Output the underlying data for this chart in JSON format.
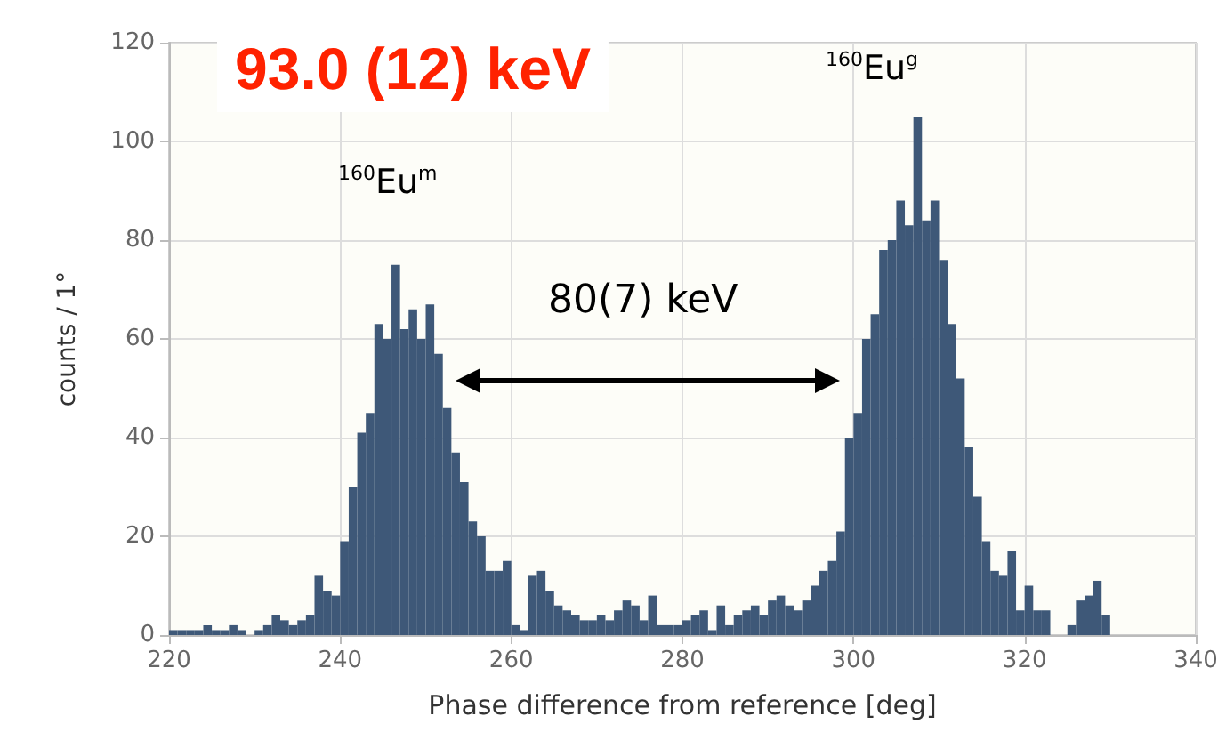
{
  "chart_data": {
    "type": "histogram",
    "title": "93.0 (12) keV",
    "xlabel": "Phase difference from reference [deg]",
    "ylabel": "counts / 1°",
    "bins": [
      220,
      221,
      222,
      223,
      224,
      225,
      226,
      227,
      228,
      229,
      230,
      231,
      232,
      233,
      234,
      235,
      236,
      237,
      238,
      239,
      240,
      241,
      242,
      243,
      244,
      245,
      246,
      247,
      248,
      249,
      250,
      251,
      252,
      253,
      254,
      255,
      256,
      257,
      258,
      259,
      260,
      261,
      262,
      263,
      264,
      265,
      266,
      267,
      268,
      269,
      270,
      271,
      272,
      273,
      274,
      275,
      276,
      277,
      278,
      279,
      280,
      281,
      282,
      283,
      284,
      285,
      286,
      287,
      288,
      289,
      290,
      291,
      292,
      293,
      294,
      295,
      296,
      297,
      298,
      299,
      300,
      301,
      302,
      303,
      304,
      305,
      306,
      307,
      308,
      309,
      310,
      311,
      312,
      313,
      314,
      315,
      316,
      317,
      318,
      319,
      320,
      321,
      322,
      323,
      324,
      325,
      326,
      327,
      328,
      329,
      330
    ],
    "values": [
      1,
      1,
      1,
      1,
      2,
      1,
      1,
      2,
      1,
      0,
      1,
      2,
      4,
      3,
      2,
      3,
      4,
      12,
      9,
      8,
      19,
      30,
      41,
      45,
      63,
      60,
      75,
      62,
      66,
      60,
      67,
      57,
      46,
      37,
      31,
      23,
      20,
      13,
      13,
      15,
      2,
      1,
      12,
      13,
      9,
      6,
      5,
      4,
      3,
      3,
      4,
      3,
      5,
      7,
      6,
      3,
      8,
      2,
      2,
      2,
      3,
      4,
      5,
      1,
      6,
      2,
      4,
      5,
      6,
      4,
      7,
      8,
      6,
      5,
      7,
      10,
      13,
      15,
      21,
      40,
      45,
      60,
      65,
      78,
      80,
      88,
      83,
      105,
      84,
      88,
      76,
      63,
      52,
      38,
      28,
      19,
      13,
      12,
      17,
      5,
      10,
      5,
      5,
      0,
      0,
      2,
      7,
      8,
      11,
      4
    ],
    "color": "#3e5878",
    "xlim": [
      220,
      340
    ],
    "xticks": [
      220,
      240,
      260,
      280,
      300,
      320,
      340
    ],
    "ylim": [
      0,
      120
    ],
    "yticks": [
      0,
      20,
      40,
      60,
      80,
      100,
      120
    ],
    "grid": true,
    "annotations": [
      "$^{160}$Eu$^{m}$",
      "$^{160}$Eu$^{g}$",
      "80(7) keV"
    ]
  }
}
